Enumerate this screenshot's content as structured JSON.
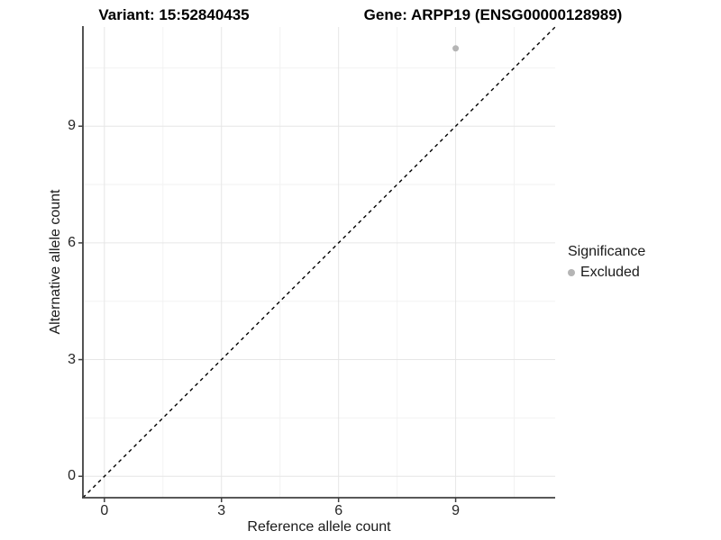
{
  "titles": {
    "variant": "Variant: 15:52840435",
    "gene": "Gene: ARPP19 (ENSG00000128989)"
  },
  "axes": {
    "x": {
      "label": "Reference allele count",
      "tick_labels": [
        "0",
        "3",
        "6",
        "9"
      ]
    },
    "y": {
      "label": "Alternative allele count",
      "tick_labels": [
        "0",
        "3",
        "6",
        "9"
      ]
    }
  },
  "legend": {
    "title": "Significance",
    "items": [
      {
        "label": "Excluded",
        "color": "#b5b5b5"
      }
    ]
  },
  "chart_data": {
    "type": "scatter",
    "title": "Variant: 15:52840435 | Gene: ARPP19 (ENSG00000128989)",
    "xlabel": "Reference allele count",
    "ylabel": "Alternative allele count",
    "xlim": [
      -0.55,
      11.55
    ],
    "ylim": [
      -0.55,
      11.55
    ],
    "x_ticks": [
      0,
      3,
      6,
      9
    ],
    "y_ticks": [
      0,
      3,
      6,
      9
    ],
    "x_minor_ticks": [
      1.5,
      4.5,
      7.5,
      10.5
    ],
    "y_minor_ticks": [
      1.5,
      4.5,
      7.5,
      10.5
    ],
    "grid": "major+minor on, white panel background",
    "legend_position": "right",
    "series": [
      {
        "name": "Excluded",
        "color": "#b5b5b5",
        "points": [
          {
            "x": 9,
            "y": 11
          }
        ]
      }
    ],
    "reference_line": {
      "kind": "identity y=x",
      "style": "dashed",
      "color": "#000000"
    },
    "colors": {
      "grid_major": "#e6e6e6",
      "grid_minor": "#f2f2f2",
      "axis_line": "#404040",
      "tick_text": "#262626",
      "title_text": "#000000",
      "point": "#b5b5b5"
    }
  }
}
